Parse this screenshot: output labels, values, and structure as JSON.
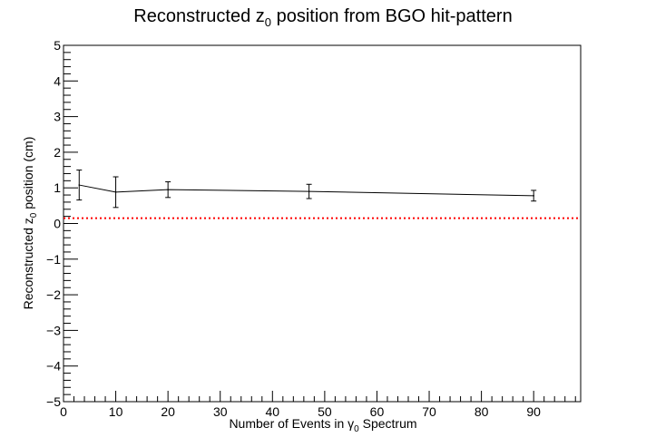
{
  "chart_data": {
    "type": "line",
    "title": {
      "prefix": "Reconstructed z",
      "sub": "0",
      "suffix": " position from BGO hit-pattern"
    },
    "xlabel": {
      "prefix": "Number of Events in ",
      "symbol": "γ",
      "sub": "0",
      "suffix": " Spectrum"
    },
    "ylabel": {
      "prefix": "Reconstructed z",
      "sub": "0",
      "suffix": " position (cm)"
    },
    "xlim": [
      0,
      99
    ],
    "ylim": [
      -5,
      5
    ],
    "x_ticks": [
      0,
      10,
      20,
      30,
      40,
      50,
      60,
      70,
      80,
      90
    ],
    "x_tick_labels": [
      "0",
      "10",
      "20",
      "30",
      "40",
      "50",
      "60",
      "70",
      "80",
      "90"
    ],
    "y_ticks": [
      -5,
      -4,
      -3,
      -2,
      -1,
      0,
      1,
      2,
      3,
      4,
      5
    ],
    "y_tick_labels": [
      "−5",
      "−4",
      "−3",
      "−2",
      "−1",
      "0",
      "1",
      "2",
      "3",
      "4",
      "5"
    ],
    "grid": false,
    "series": [
      {
        "x": [
          3,
          10,
          20,
          47,
          90
        ],
        "y": [
          1.08,
          0.88,
          0.95,
          0.9,
          0.78
        ],
        "yerr": [
          0.42,
          0.43,
          0.22,
          0.2,
          0.15
        ],
        "color": "#000000"
      }
    ],
    "reference_line": {
      "y": 0.15,
      "color": "#ff0000",
      "style": "dotted"
    }
  }
}
